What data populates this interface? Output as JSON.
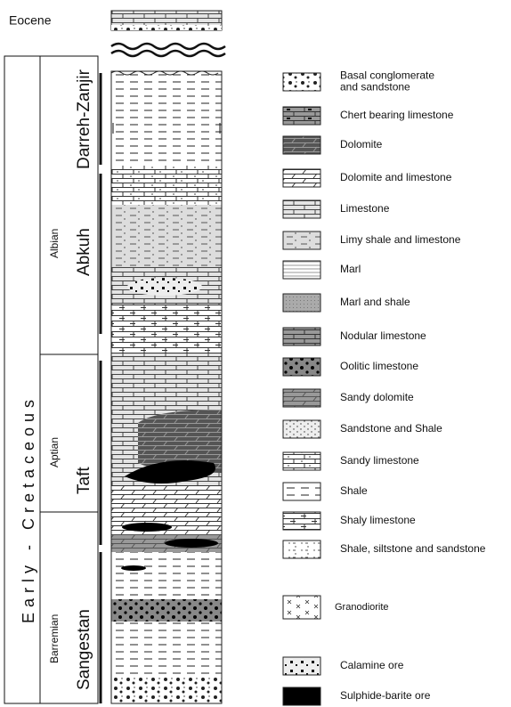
{
  "epoch_top": "Eocene",
  "era": "Early - Cretaceous",
  "stages": [
    "Albian",
    "Aptian",
    "Barremian"
  ],
  "formations": [
    "Darreh-Zanjir",
    "Abkuh",
    "Taft",
    "Sangestan"
  ],
  "legend": [
    [
      "Basal conglomerate",
      "and sandstone"
    ],
    [
      "Chert bearing limestone"
    ],
    [
      "Dolomite"
    ],
    [
      "Dolomite and limestone"
    ],
    [
      "Limestone"
    ],
    [
      "Limy shale and limestone"
    ],
    [
      "Marl"
    ],
    [
      "Marl and shale"
    ],
    [
      "Nodular limestone"
    ],
    [
      "Oolitic limestone"
    ],
    [
      "Sandy dolomite"
    ],
    [
      "Sandstone and  Shale"
    ],
    [
      "Sandy limestone"
    ],
    [
      "Shale"
    ],
    [
      "Shaly limestone"
    ],
    [
      "Shale, siltstone and sandstone"
    ],
    [
      "Granodiorite"
    ],
    [
      "Calamine ore"
    ],
    [
      "Sulphide-barite ore"
    ]
  ]
}
